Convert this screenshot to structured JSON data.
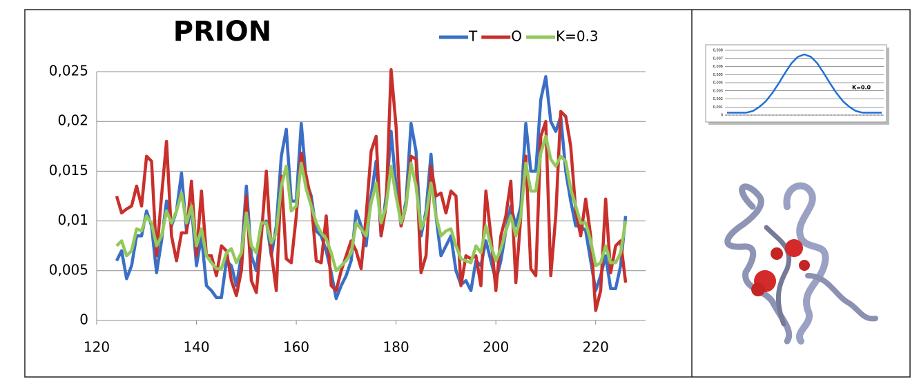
{
  "chart_data": [
    {
      "type": "line",
      "title": "PRION",
      "x": [
        124,
        125,
        126,
        127,
        128,
        129,
        130,
        131,
        132,
        133,
        134,
        135,
        136,
        137,
        138,
        139,
        140,
        141,
        142,
        143,
        144,
        145,
        146,
        147,
        148,
        149,
        150,
        151,
        152,
        153,
        154,
        155,
        156,
        157,
        158,
        159,
        160,
        161,
        162,
        163,
        164,
        165,
        166,
        167,
        168,
        169,
        170,
        171,
        172,
        173,
        174,
        175,
        176,
        177,
        178,
        179,
        180,
        181,
        182,
        183,
        184,
        185,
        186,
        187,
        188,
        189,
        190,
        191,
        192,
        193,
        194,
        195,
        196,
        197,
        198,
        199,
        200,
        201,
        202,
        203,
        204,
        205,
        206,
        207,
        208,
        209,
        210,
        211,
        212,
        213,
        214,
        215,
        216,
        217,
        218,
        219,
        220,
        221,
        222,
        223,
        224,
        225,
        226
      ],
      "series": [
        {
          "name": "T",
          "color": "#3b6fc6",
          "values": [
            0.006,
            0.007,
            0.0042,
            0.0055,
            0.0085,
            0.0085,
            0.011,
            0.0095,
            0.0048,
            0.008,
            0.012,
            0.0095,
            0.011,
            0.0148,
            0.009,
            0.0115,
            0.0055,
            0.0085,
            0.0035,
            0.003,
            0.0023,
            0.0023,
            0.006,
            0.0055,
            0.0035,
            0.0065,
            0.0135,
            0.0065,
            0.005,
            0.0095,
            0.01,
            0.0065,
            0.0095,
            0.0165,
            0.0192,
            0.012,
            0.012,
            0.0198,
            0.014,
            0.0125,
            0.009,
            0.0085,
            0.007,
            0.0048,
            0.0022,
            0.0035,
            0.0045,
            0.006,
            0.011,
            0.0095,
            0.0075,
            0.0125,
            0.016,
            0.0085,
            0.0125,
            0.019,
            0.0135,
            0.0095,
            0.012,
            0.0198,
            0.017,
            0.0085,
            0.011,
            0.0167,
            0.0105,
            0.0065,
            0.0075,
            0.0085,
            0.005,
            0.0036,
            0.004,
            0.003,
            0.006,
            0.0055,
            0.008,
            0.006,
            0.004,
            0.006,
            0.009,
            0.0115,
            0.0095,
            0.0115,
            0.0198,
            0.015,
            0.015,
            0.0222,
            0.0245,
            0.02,
            0.019,
            0.0205,
            0.015,
            0.012,
            0.0095,
            0.0095,
            0.009,
            0.006,
            0.003,
            0.0045,
            0.0065,
            0.0032,
            0.0032,
            0.0055,
            0.0105
          ]
        },
        {
          "name": "O",
          "color": "#c9302c",
          "values": [
            0.0125,
            0.0108,
            0.0112,
            0.0115,
            0.0135,
            0.0115,
            0.0165,
            0.016,
            0.0065,
            0.0125,
            0.018,
            0.0085,
            0.006,
            0.0088,
            0.0088,
            0.014,
            0.0065,
            0.013,
            0.0065,
            0.0065,
            0.0045,
            0.0075,
            0.007,
            0.004,
            0.0025,
            0.005,
            0.0125,
            0.004,
            0.0028,
            0.0085,
            0.015,
            0.0068,
            0.003,
            0.0145,
            0.0062,
            0.0058,
            0.0105,
            0.0168,
            0.0145,
            0.012,
            0.006,
            0.0058,
            0.0105,
            0.0035,
            0.003,
            0.005,
            0.0065,
            0.008,
            0.007,
            0.0052,
            0.0105,
            0.017,
            0.0185,
            0.0085,
            0.0115,
            0.0252,
            0.0195,
            0.0095,
            0.0115,
            0.0165,
            0.0162,
            0.0048,
            0.0065,
            0.0155,
            0.0125,
            0.0128,
            0.0108,
            0.013,
            0.0125,
            0.0035,
            0.0065,
            0.0062,
            0.0065,
            0.0035,
            0.013,
            0.0085,
            0.003,
            0.0085,
            0.0105,
            0.014,
            0.0038,
            0.0105,
            0.0165,
            0.0052,
            0.0045,
            0.0185,
            0.02,
            0.0045,
            0.0105,
            0.021,
            0.0205,
            0.0175,
            0.011,
            0.0085,
            0.0122,
            0.0085,
            0.001,
            0.003,
            0.0122,
            0.0048,
            0.0075,
            0.008,
            0.0038
          ]
        },
        {
          "name": "K=0.3",
          "color": "#93c95c",
          "values": [
            0.0075,
            0.008,
            0.0065,
            0.007,
            0.0092,
            0.009,
            0.0105,
            0.0098,
            0.0075,
            0.0085,
            0.011,
            0.0098,
            0.011,
            0.0128,
            0.0098,
            0.0115,
            0.0075,
            0.0092,
            0.0065,
            0.0058,
            0.0052,
            0.0052,
            0.0068,
            0.0072,
            0.0058,
            0.0068,
            0.0108,
            0.0075,
            0.0068,
            0.0098,
            0.0098,
            0.0078,
            0.0088,
            0.0135,
            0.0155,
            0.011,
            0.0115,
            0.0158,
            0.0132,
            0.0115,
            0.0098,
            0.0088,
            0.0082,
            0.0068,
            0.005,
            0.0055,
            0.006,
            0.0068,
            0.0098,
            0.0092,
            0.0085,
            0.0118,
            0.0138,
            0.0098,
            0.0115,
            0.0155,
            0.0125,
            0.0098,
            0.0115,
            0.0158,
            0.0135,
            0.0092,
            0.0105,
            0.0138,
            0.0105,
            0.0085,
            0.009,
            0.0092,
            0.0075,
            0.0062,
            0.006,
            0.0058,
            0.0075,
            0.0068,
            0.0095,
            0.0075,
            0.006,
            0.0072,
            0.009,
            0.0105,
            0.0085,
            0.0105,
            0.0158,
            0.013,
            0.013,
            0.0168,
            0.0185,
            0.0162,
            0.0155,
            0.0165,
            0.016,
            0.0132,
            0.0115,
            0.0098,
            0.0098,
            0.008,
            0.0055,
            0.0058,
            0.0075,
            0.0058,
            0.0058,
            0.0068,
            0.01
          ]
        }
      ],
      "xlim": [
        120,
        230
      ],
      "xticks": [
        120,
        140,
        160,
        180,
        200,
        220
      ],
      "ylim": [
        0,
        0.025
      ],
      "yticks": [
        0,
        {
          "value": 0.005,
          "label": "0,005"
        },
        {
          "value": 0.01,
          "label": "0,01"
        },
        {
          "value": 0.015,
          "label": "0,015"
        },
        {
          "value": 0.02,
          "label": "0,02"
        },
        {
          "value": 0.025,
          "label": "0,025"
        }
      ],
      "grid": true,
      "legend": "top"
    },
    {
      "type": "line",
      "annotation": "K=0.0",
      "series": [
        {
          "color": "#1f6fd6",
          "values": [
            0.0003,
            0.0003,
            0.0003,
            0.0003,
            0.0005,
            0.001,
            0.0017,
            0.0027,
            0.0039,
            0.0052,
            0.0064,
            0.0072,
            0.0075,
            0.0072,
            0.0064,
            0.0052,
            0.0039,
            0.0027,
            0.0017,
            0.001,
            0.0005,
            0.0003,
            0.0003,
            0.0003,
            0.0003
          ]
        }
      ],
      "ylim": [
        0,
        0.008
      ],
      "yticks": [
        0,
        {
          "value": 0.001,
          "label": "0,001"
        },
        {
          "value": 0.002,
          "label": "0,002"
        },
        {
          "value": 0.003,
          "label": "0,003"
        },
        {
          "value": 0.004,
          "label": "0,004"
        },
        {
          "value": 0.005,
          "label": "0,005"
        },
        {
          "value": 0.006,
          "label": "0,006"
        },
        {
          "value": 0.007,
          "label": "0,007"
        },
        {
          "value": 0.008,
          "label": "0,008"
        }
      ],
      "grid": true
    }
  ]
}
